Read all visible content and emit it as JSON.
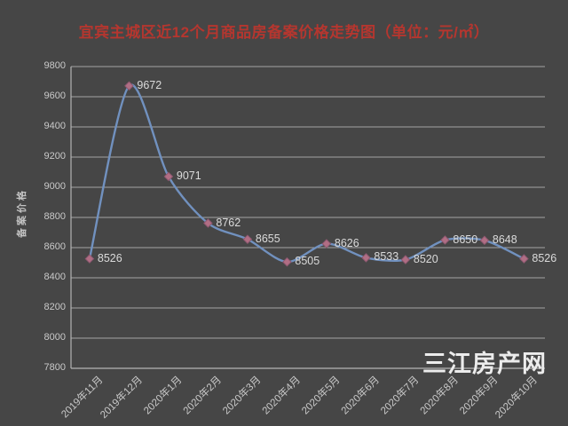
{
  "page": {
    "background_color": "#464646"
  },
  "title": {
    "text": "宜宾主城区近12个月商品房备案价格走势图（单位：元/㎡）",
    "color": "#b5362f"
  },
  "watermark": {
    "text": "三江房产网"
  },
  "chart_data": {
    "type": "line",
    "title": "宜宾主城区近12个月商品房备案价格走势图（单位：元/㎡）",
    "xlabel": "",
    "ylabel": "备案价格",
    "categories": [
      "2019年11月",
      "2019年12月",
      "2020年1月",
      "2020年2月",
      "2020年3月",
      "2020年4月",
      "2020年5月",
      "2020年6月",
      "2020年7月",
      "2020年8月",
      "2020年9月",
      "2020年10月"
    ],
    "values": [
      8526,
      9672,
      9071,
      8762,
      8655,
      8505,
      8626,
      8533,
      8520,
      8650,
      8648,
      8526
    ],
    "data_labels": [
      "8526",
      "9672",
      "9071",
      "8762",
      "8655",
      "8505",
      "8626",
      "8533",
      "8520",
      "8650",
      "8648",
      "8526"
    ],
    "ylim": [
      7800,
      9800
    ],
    "ytick_step": 200,
    "yticks": [
      9800,
      9600,
      9400,
      9200,
      9000,
      8800,
      8600,
      8400,
      8200,
      8000,
      7800
    ],
    "grid": true,
    "legend_position": "none",
    "line_color": "#7191bf",
    "marker_shape": "diamond",
    "marker_color": "#b06e84",
    "marker_edge_color": "#8d5870",
    "gridline_color": "#a4a4a4",
    "axis_line_color": "#b5b5b5",
    "tick_label_color": "#c9c9c9",
    "data_label_color": "#dbdbdb"
  }
}
